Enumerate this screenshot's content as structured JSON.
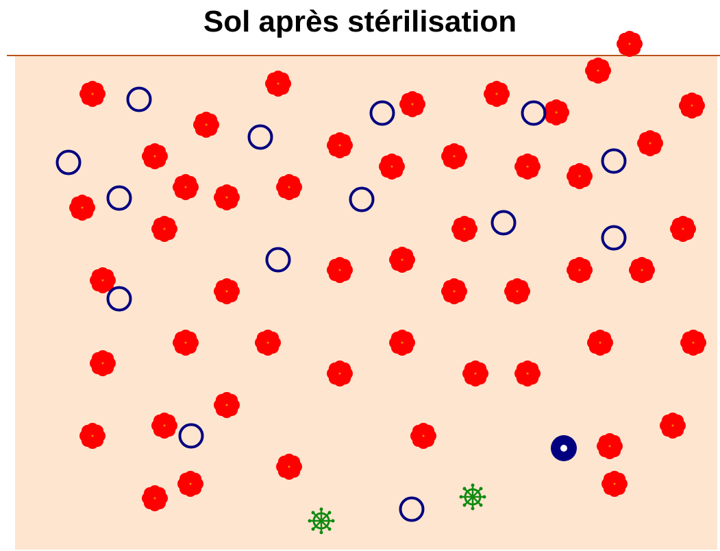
{
  "title": "Sol après stérilisation",
  "colors": {
    "soil": "#fde5cf",
    "surface_line": "#b9521a",
    "red_organism": "#ff0000",
    "red_organism_core": "#ff8a00",
    "blue_ring": "#000080",
    "green_organism": "#108a10",
    "title_text": "#000000"
  },
  "legend_icons": {
    "red": "red-flower-organism-icon",
    "ring": "blue-ring-organism-icon",
    "filled_ring": "blue-filled-ring-organism-icon",
    "green": "green-wheel-organism-icon"
  }
}
